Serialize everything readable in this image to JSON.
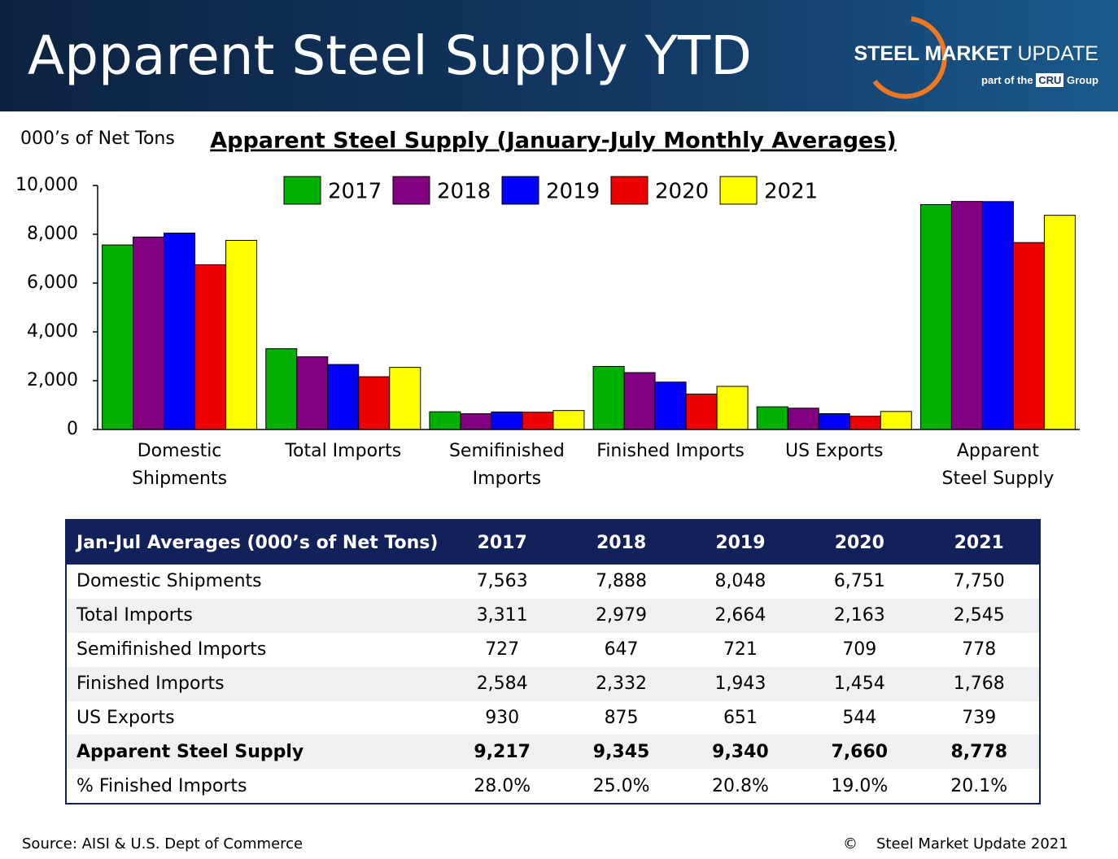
{
  "header": {
    "title": "Apparent Steel Supply YTD",
    "logo": {
      "brand_bold": "STEEL MARKET",
      "brand_light": "UPDATE",
      "tagline_before": "part of the",
      "tagline_brand": "CRU",
      "tagline_after": "Group"
    }
  },
  "chart_data": {
    "type": "bar",
    "title": "Apparent Steel Supply (January-July Monthly Averages)",
    "y_label": "000’s of Net Tons",
    "categories": [
      "Domestic\nShipments",
      "Total Imports",
      "Semifinished\nImports",
      "Finished Imports",
      "US Exports",
      "Apparent\nSteel Supply"
    ],
    "series": [
      {
        "name": "2017",
        "color": "#00b000",
        "values": [
          7563,
          3311,
          727,
          2584,
          930,
          9217
        ]
      },
      {
        "name": "2018",
        "color": "#800080",
        "values": [
          7888,
          2979,
          647,
          2332,
          875,
          9345
        ]
      },
      {
        "name": "2019",
        "color": "#0000ff",
        "values": [
          8048,
          2664,
          721,
          1943,
          651,
          9340
        ]
      },
      {
        "name": "2020",
        "color": "#ee0000",
        "values": [
          6751,
          2163,
          709,
          1454,
          544,
          7660
        ]
      },
      {
        "name": "2021",
        "color": "#ffff00",
        "values": [
          7750,
          2545,
          778,
          1768,
          739,
          8778
        ]
      }
    ],
    "ylim": [
      0,
      10000
    ],
    "yticks": [
      0,
      {
        "value": 2000,
        "label": "2,000"
      },
      {
        "value": 4000,
        "label": "4,000"
      },
      {
        "value": 6000,
        "label": "6,000"
      },
      {
        "value": 8000,
        "label": "8,000"
      },
      {
        "value": 10000,
        "label": "10,000"
      }
    ],
    "legend": "top"
  },
  "table": {
    "header": [
      "Jan-Jul Averages (000’s of Net Tons)",
      "2017",
      "2018",
      "2019",
      "2020",
      "2021"
    ],
    "rows": [
      [
        "Domestic Shipments",
        "7,563",
        "7,888",
        "8,048",
        "6,751",
        "7,750"
      ],
      [
        "Total Imports",
        "3,311",
        "2,979",
        "2,664",
        "2,163",
        "2,545"
      ],
      [
        "Semifinished Imports",
        "727",
        "647",
        "721",
        "709",
        "778"
      ],
      [
        "Finished Imports",
        "2,584",
        "2,332",
        "1,943",
        "1,454",
        "1,768"
      ],
      [
        "US Exports",
        "930",
        "875",
        "651",
        "544",
        "739"
      ],
      [
        "Apparent Steel Supply",
        "9,217",
        "9,345",
        "9,340",
        "7,660",
        "8,778"
      ],
      [
        "% Finished Imports",
        "28.0%",
        "25.0%",
        "20.8%",
        "19.0%",
        "20.1%"
      ]
    ]
  },
  "footer": {
    "source": "Source:  AISI & U.S. Dept of Commerce",
    "copyright_symbol": "©",
    "copyright": "Steel Market Update 2021"
  }
}
